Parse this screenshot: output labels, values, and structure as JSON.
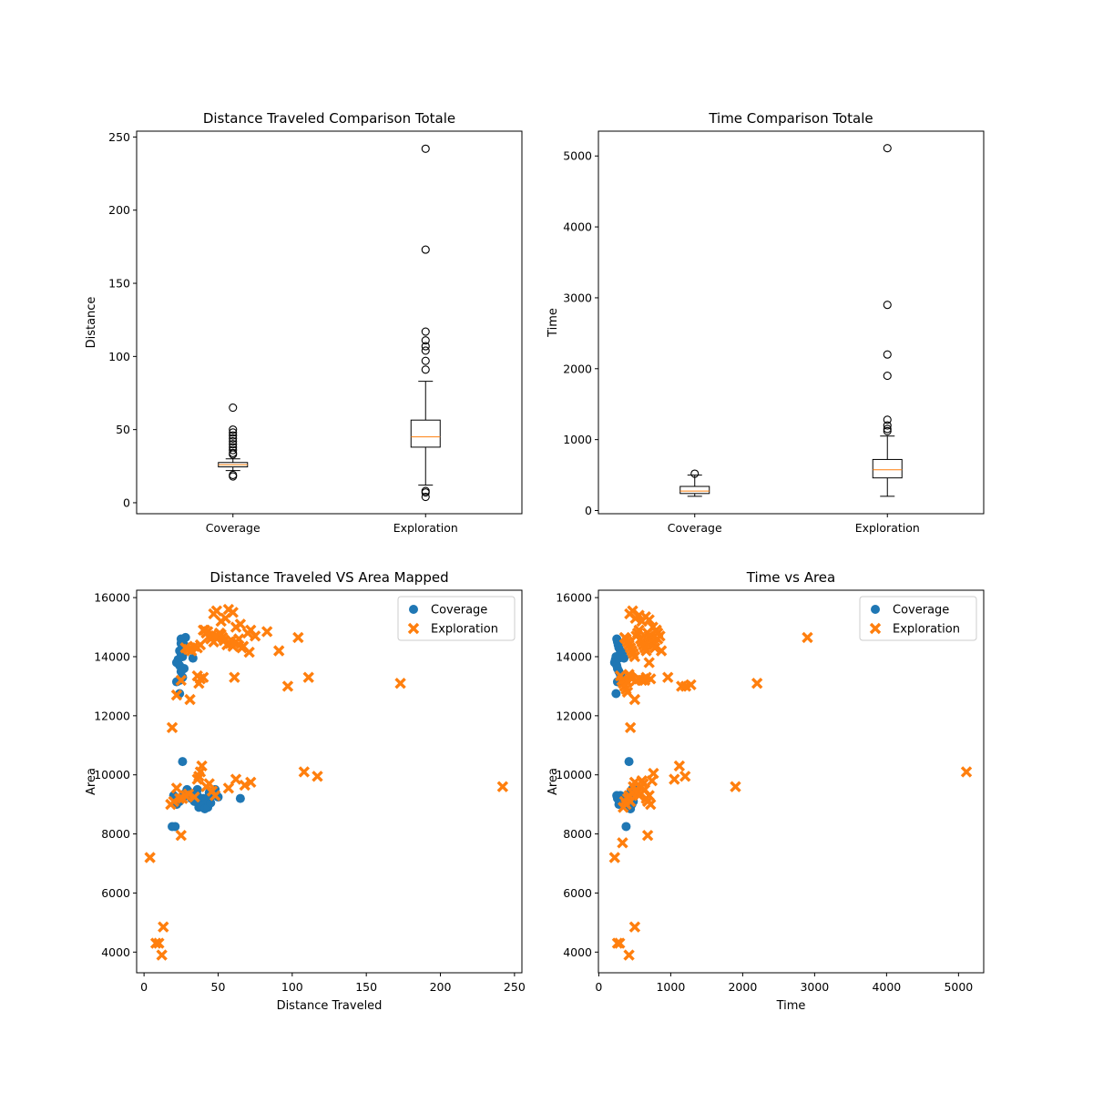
{
  "colors": {
    "coverage": "#1f77b4",
    "exploration": "#ff7f0e",
    "median": "#ff7f0e",
    "box": "#000000"
  },
  "chart_data": [
    {
      "id": "dist-box",
      "type": "box",
      "title": "Distance Traveled Comparison Totale",
      "xlabel": "",
      "ylabel": "Distance",
      "ylim": [
        -7.5,
        254
      ],
      "yticks": [
        0,
        50,
        100,
        150,
        200,
        250
      ],
      "categories": [
        "Coverage",
        "Exploration"
      ],
      "boxes": [
        {
          "name": "Coverage",
          "whisker_low": 22,
          "q1": 24.5,
          "median": 26,
          "q3": 27.5,
          "whisker_high": 30,
          "outliers": [
            18,
            19,
            33,
            34,
            36,
            38,
            40,
            42,
            44,
            46,
            48,
            50,
            65
          ]
        },
        {
          "name": "Exploration",
          "whisker_low": 12,
          "q1": 38,
          "median": 45,
          "q3": 56.5,
          "whisker_high": 83,
          "outliers": [
            4,
            7,
            8,
            91,
            97,
            104,
            107,
            111,
            117,
            173,
            242
          ]
        }
      ]
    },
    {
      "id": "time-box",
      "type": "box",
      "title": "Time Comparison Totale",
      "xlabel": "",
      "ylabel": "Time",
      "ylim": [
        -45,
        5350
      ],
      "yticks": [
        0,
        1000,
        2000,
        3000,
        4000,
        5000
      ],
      "categories": [
        "Coverage",
        "Exploration"
      ],
      "boxes": [
        {
          "name": "Coverage",
          "whisker_low": 200,
          "q1": 240,
          "median": 275,
          "q3": 340,
          "whisker_high": 500,
          "outliers": [
            520
          ]
        },
        {
          "name": "Exploration",
          "whisker_low": 200,
          "q1": 460,
          "median": 575,
          "q3": 720,
          "whisker_high": 1050,
          "outliers": [
            1120,
            1150,
            1200,
            1280,
            1900,
            2200,
            2900,
            5110
          ]
        }
      ]
    },
    {
      "id": "dist-scatter",
      "type": "scatter",
      "title": "Distance Traveled VS Area Mapped",
      "xlabel": "Distance Traveled",
      "ylabel": "Area",
      "xlim": [
        -5,
        255
      ],
      "ylim": [
        3300,
        16250
      ],
      "xticks": [
        0,
        50,
        100,
        150,
        200,
        250
      ],
      "yticks": [
        4000,
        6000,
        8000,
        10000,
        12000,
        14000,
        16000
      ],
      "legend": {
        "position": "top-right"
      },
      "series": [
        {
          "name": "Coverage",
          "marker": "circle",
          "x": [
            25,
            26,
            27,
            28,
            24,
            25,
            26,
            23,
            22,
            24,
            27,
            25,
            33,
            26,
            24,
            28,
            25,
            22,
            24,
            20,
            23,
            19,
            21,
            22,
            24,
            26,
            28,
            30,
            32,
            34,
            36,
            38,
            40,
            42,
            44,
            46,
            48,
            50,
            37,
            39,
            41,
            43,
            29,
            31,
            27,
            26,
            65,
            36,
            42,
            45
          ],
          "y": [
            14600,
            14550,
            14400,
            14300,
            14200,
            14100,
            14000,
            13900,
            13800,
            13700,
            13600,
            13500,
            13950,
            13300,
            13200,
            14650,
            14450,
            13150,
            12750,
            9300,
            9200,
            8250,
            8250,
            9000,
            9100,
            9200,
            9300,
            9400,
            9200,
            9100,
            9300,
            9000,
            9200,
            9100,
            9400,
            9300,
            9500,
            9250,
            8900,
            8950,
            8850,
            8900,
            9500,
            9400,
            9350,
            10450,
            9200,
            9500,
            9150,
            9050
          ]
        },
        {
          "name": "Exploration",
          "marker": "x",
          "x": [
            47,
            49,
            55,
            57,
            52,
            60,
            62,
            65,
            70,
            72,
            75,
            83,
            40,
            42,
            44,
            45,
            47,
            50,
            52,
            54,
            56,
            58,
            60,
            62,
            64,
            66,
            38,
            36,
            34,
            32,
            30,
            28,
            104,
            91,
            41,
            43,
            46,
            48,
            51,
            53,
            59,
            61,
            67,
            71,
            36,
            40,
            38,
            37,
            61,
            25,
            22,
            31,
            97,
            111,
            173,
            117,
            108,
            62,
            68,
            72,
            57,
            242,
            39,
            38,
            37,
            36,
            44,
            42,
            46,
            48,
            34,
            30,
            28,
            26,
            22,
            18,
            20,
            24,
            19,
            25,
            4,
            8,
            10,
            13,
            12
          ],
          "y": [
            15450,
            15550,
            15300,
            15600,
            15200,
            15500,
            15000,
            15100,
            14800,
            14900,
            14700,
            14850,
            14900,
            14800,
            14700,
            14600,
            14500,
            14650,
            14750,
            14550,
            14400,
            14450,
            14350,
            14500,
            14600,
            14300,
            14400,
            14300,
            14350,
            14200,
            14250,
            14300,
            14650,
            14200,
            14900,
            14850,
            14750,
            14700,
            14800,
            14650,
            14550,
            14450,
            14350,
            14150,
            13350,
            13300,
            13250,
            13100,
            13300,
            13200,
            12700,
            12550,
            13000,
            13300,
            13100,
            9950,
            10100,
            9850,
            9650,
            9750,
            9550,
            9600,
            10300,
            10100,
            9950,
            9850,
            9700,
            9600,
            9450,
            9300,
            9250,
            9350,
            9300,
            9200,
            9550,
            9000,
            9100,
            9200,
            11600,
            7950,
            7200,
            4300,
            4300,
            4850,
            3900
          ]
        }
      ]
    },
    {
      "id": "time-scatter",
      "type": "scatter",
      "title": "Time vs Area",
      "xlabel": "Time",
      "ylabel": "Area",
      "xlim": [
        -5,
        5350
      ],
      "ylim": [
        3300,
        16250
      ],
      "xticks": [
        0,
        1000,
        2000,
        3000,
        4000,
        5000
      ],
      "yticks": [
        4000,
        6000,
        8000,
        10000,
        12000,
        14000,
        16000
      ],
      "legend": {
        "position": "top-right"
      },
      "series": [
        {
          "name": "Coverage",
          "marker": "circle",
          "x": [
            250,
            260,
            270,
            280,
            300,
            320,
            240,
            230,
            220,
            250,
            260,
            280,
            300,
            320,
            340,
            260,
            280,
            300,
            330,
            350,
            380,
            240,
            250,
            260,
            280,
            290,
            300,
            320,
            360,
            400,
            420,
            440,
            460,
            480,
            500,
            520,
            380,
            420,
            440,
            460,
            460,
            420
          ],
          "y": [
            14600,
            14500,
            14400,
            14300,
            14200,
            14100,
            14000,
            13900,
            13800,
            13700,
            13600,
            13500,
            13400,
            13300,
            13200,
            13150,
            13950,
            14050,
            14150,
            13950,
            13200,
            12750,
            9300,
            9200,
            9000,
            9100,
            9300,
            9200,
            9000,
            9100,
            9300,
            9400,
            9200,
            9100,
            9300,
            9500,
            8250,
            8900,
            8850,
            9000,
            9500,
            10450
          ]
        },
        {
          "name": "Exploration",
          "marker": "x",
          "x": [
            430,
            470,
            510,
            560,
            600,
            650,
            700,
            750,
            800,
            820,
            850,
            870,
            360,
            380,
            400,
            420,
            440,
            460,
            480,
            500,
            520,
            540,
            560,
            580,
            600,
            620,
            640,
            660,
            680,
            700,
            720,
            740,
            760,
            780,
            800,
            820,
            300,
            320,
            340,
            360,
            380,
            400,
            420,
            440,
            460,
            960,
            560,
            600,
            640,
            660,
            700,
            720,
            500,
            520,
            420,
            400,
            1150,
            1280,
            1210,
            2200,
            2900,
            5110,
            380,
            340,
            360,
            400,
            420,
            440,
            460,
            480,
            500,
            520,
            540,
            560,
            580,
            600,
            620,
            640,
            660,
            680,
            700,
            720,
            740,
            760,
            1120,
            1050,
            1200,
            1900,
            440,
            680,
            220,
            260,
            290,
            330,
            420,
            500
          ],
          "y": [
            15450,
            15550,
            15300,
            15400,
            15200,
            15350,
            15250,
            15000,
            14900,
            14800,
            14700,
            14200,
            14650,
            14600,
            14500,
            14400,
            14300,
            14200,
            14100,
            14000,
            14700,
            14800,
            14900,
            14600,
            14500,
            14400,
            14300,
            14200,
            14800,
            14700,
            14600,
            14500,
            14400,
            14300,
            14900,
            14600,
            13350,
            13200,
            13100,
            13000,
            12900,
            12800,
            13350,
            13300,
            13250,
            13300,
            13250,
            13200,
            13200,
            13300,
            13800,
            13250,
            12550,
            13200,
            13400,
            13150,
            13000,
            13050,
            13000,
            13100,
            14650,
            10100,
            9000,
            8900,
            9100,
            9200,
            9300,
            9100,
            9400,
            9600,
            9750,
            9500,
            9400,
            9300,
            9600,
            9800,
            9700,
            9500,
            9200,
            9100,
            9300,
            9000,
            9800,
            10050,
            10300,
            9850,
            9950,
            9600,
            11600,
            7950,
            7200,
            4300,
            4300,
            7700,
            3900,
            4850
          ]
        }
      ]
    }
  ]
}
